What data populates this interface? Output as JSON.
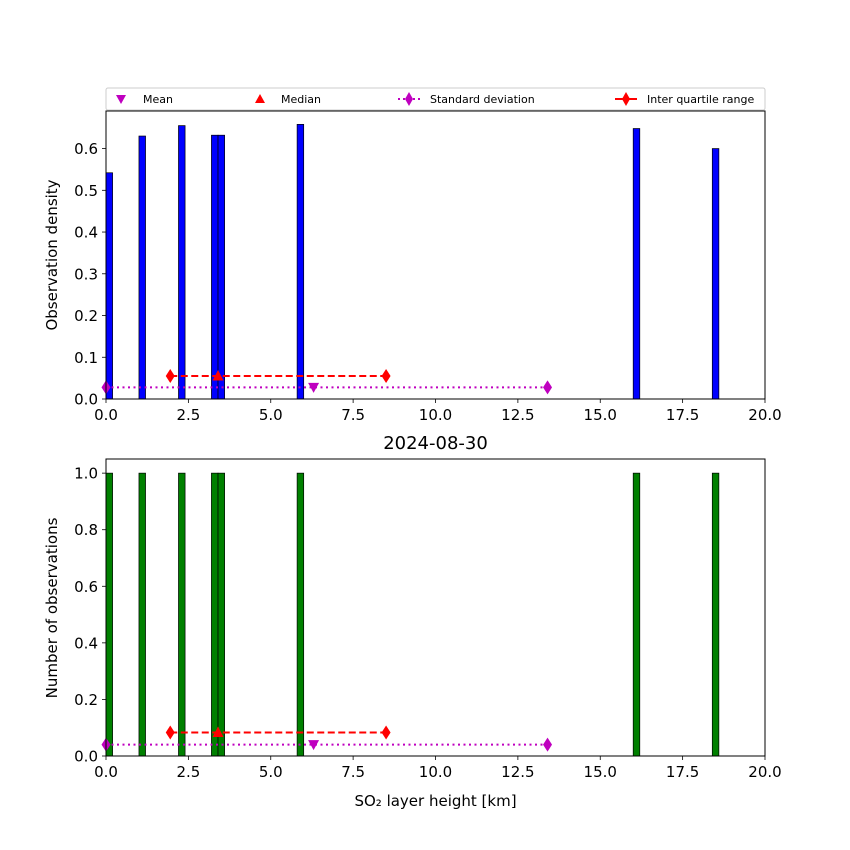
{
  "chart_data": [
    {
      "type": "bar",
      "panel": "top",
      "title": "",
      "xlabel": "",
      "ylabel": "Observation density",
      "xlim": [
        0,
        20
      ],
      "ylim": [
        0,
        0.69
      ],
      "xticks": [
        0,
        2.5,
        5,
        7.5,
        10,
        12.5,
        15,
        17.5,
        20
      ],
      "xtick_labels": [
        "0.0",
        "2.5",
        "5.0",
        "7.5",
        "10.0",
        "12.5",
        "15.0",
        "17.5",
        "20.0"
      ],
      "yticks": [
        0,
        0.1,
        0.2,
        0.3,
        0.4,
        0.5,
        0.6
      ],
      "ytick_labels": [
        "0.0",
        "0.1",
        "0.2",
        "0.3",
        "0.4",
        "0.5",
        "0.6"
      ],
      "bar_color": "#0000ff",
      "bar_width": 0.2,
      "bars": [
        {
          "x": 0.1,
          "value": 0.542
        },
        {
          "x": 1.1,
          "value": 0.63
        },
        {
          "x": 2.3,
          "value": 0.655
        },
        {
          "x": 3.3,
          "value": 0.632
        },
        {
          "x": 3.5,
          "value": 0.632
        },
        {
          "x": 5.9,
          "value": 0.658
        },
        {
          "x": 16.1,
          "value": 0.648
        },
        {
          "x": 18.5,
          "value": 0.6
        }
      ],
      "legend": [
        {
          "label": "Mean",
          "marker": "triangle-down",
          "color": "#bf00bf"
        },
        {
          "label": "Median",
          "marker": "triangle-up",
          "color": "#ff0000"
        },
        {
          "label": "Standard deviation",
          "marker": "diamond",
          "line": "dotted",
          "color": "#bf00bf"
        },
        {
          "label": "Inter quartile range",
          "marker": "diamond",
          "line": "solid",
          "color": "#ff0000"
        }
      ],
      "legend_position": "above-plot",
      "stats": {
        "mean": {
          "x": 6.3,
          "y": 0.028
        },
        "median": {
          "x": 3.4,
          "y": 0.055
        },
        "std_range": {
          "x": [
            0,
            13.4
          ],
          "y": 0.028
        },
        "iqr_range": {
          "x": [
            1.95,
            8.5
          ],
          "y": 0.055
        }
      }
    },
    {
      "type": "bar",
      "panel": "bottom",
      "title": "2024-08-30",
      "xlabel": "SO₂ layer height [km]",
      "ylabel": "Number of observations",
      "xlim": [
        0,
        20
      ],
      "ylim": [
        0,
        1.05
      ],
      "xticks": [
        0,
        2.5,
        5,
        7.5,
        10,
        12.5,
        15,
        17.5,
        20
      ],
      "xtick_labels": [
        "0.0",
        "2.5",
        "5.0",
        "7.5",
        "10.0",
        "12.5",
        "15.0",
        "17.5",
        "20.0"
      ],
      "yticks": [
        0,
        0.2,
        0.4,
        0.6,
        0.8,
        1.0
      ],
      "ytick_labels": [
        "0.0",
        "0.2",
        "0.4",
        "0.6",
        "0.8",
        "1.0"
      ],
      "bar_color": "#008000",
      "bar_width": 0.2,
      "bars": [
        {
          "x": 0.1,
          "value": 1
        },
        {
          "x": 1.1,
          "value": 1
        },
        {
          "x": 2.3,
          "value": 1
        },
        {
          "x": 3.3,
          "value": 1
        },
        {
          "x": 3.5,
          "value": 1
        },
        {
          "x": 5.9,
          "value": 1
        },
        {
          "x": 16.1,
          "value": 1
        },
        {
          "x": 18.5,
          "value": 1
        }
      ],
      "stats": {
        "mean": {
          "x": 6.3,
          "y": 0.04
        },
        "median": {
          "x": 3.4,
          "y": 0.083
        },
        "std_range": {
          "x": [
            0,
            13.4
          ],
          "y": 0.04
        },
        "iqr_range": {
          "x": [
            1.95,
            8.5
          ],
          "y": 0.083
        }
      }
    }
  ]
}
